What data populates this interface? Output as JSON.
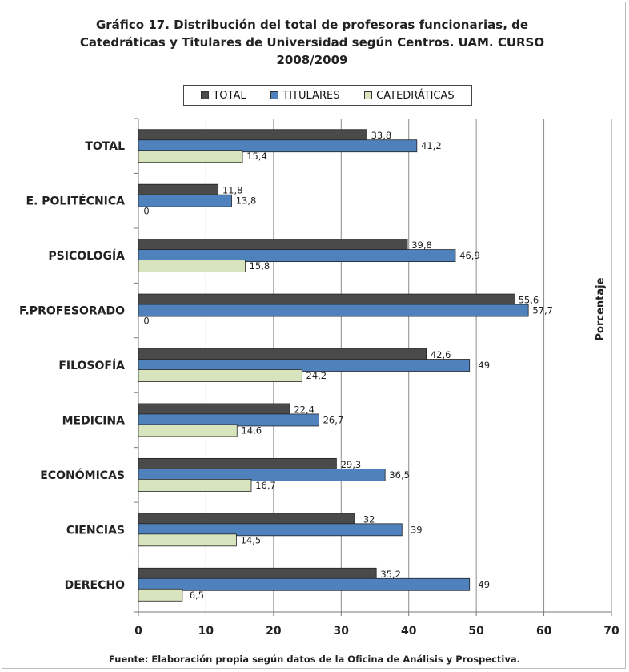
{
  "chart_data": {
    "type": "bar",
    "orientation": "horizontal",
    "title_lines": [
      "Gráfico 17. Distribución del total de profesoras funcionarias, de",
      "Catedráticas y Titulares de Universidad según Centros. UAM. CURSO",
      "2008/2009"
    ],
    "categories": [
      "TOTAL",
      "E. POLITÉCNICA",
      "PSICOLOGÍA",
      "F.PROFESORADO",
      "FILOSOFÍA",
      "MEDICINA",
      "ECONÓMICAS",
      "CIENCIAS",
      "DERECHO"
    ],
    "series": [
      {
        "name": "TOTAL",
        "color": "#4a4a4a",
        "values": [
          33.8,
          11.8,
          39.8,
          55.6,
          42.6,
          22.4,
          29.3,
          32,
          35.2
        ],
        "labels": [
          "33,8",
          "11,8",
          "39,8",
          "55,6",
          "42,6",
          "22,4",
          "29,3",
          "32",
          "35,2"
        ]
      },
      {
        "name": "TITULARES",
        "color": "#4f81bd",
        "values": [
          41.2,
          13.8,
          46.9,
          57.7,
          49,
          26.7,
          36.5,
          39,
          49
        ],
        "labels": [
          "41,2",
          "13,8",
          "46,9",
          "57,7",
          "49",
          "26,7",
          "36,5",
          "39",
          "49"
        ]
      },
      {
        "name": "CATEDRÁTICAS",
        "color": "#d7e4bd",
        "values": [
          15.4,
          0,
          15.8,
          0,
          24.2,
          14.6,
          16.7,
          14.5,
          6.5
        ],
        "labels": [
          "15,4",
          "0",
          "15,8",
          "0",
          "24,2",
          "14,6",
          "16,7",
          "14,5",
          "6,5"
        ]
      }
    ],
    "xlim": [
      0,
      70
    ],
    "xticks": [
      0,
      10,
      20,
      30,
      40,
      50,
      60,
      70
    ],
    "ylabel": "Porcentaje",
    "grid": true,
    "legend_position": "top"
  },
  "footnote": "Fuente: Elaboración propia según datos de la Oficina de Análisis y Prospectiva."
}
